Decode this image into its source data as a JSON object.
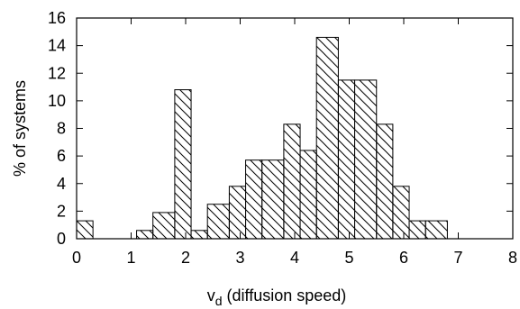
{
  "chart_data": {
    "type": "bar",
    "subtype": "histogram",
    "xlabel": {
      "prefix": "v",
      "subscript": "d",
      "suffix": " (diffusion speed)"
    },
    "ylabel": "% of systems",
    "xlim": [
      0,
      8
    ],
    "ylim": [
      0,
      16
    ],
    "xticks": [
      0,
      1,
      2,
      3,
      4,
      5,
      6,
      7,
      8
    ],
    "yticks": [
      0,
      2,
      4,
      6,
      8,
      10,
      12,
      14,
      16
    ],
    "bin_width": 0.3,
    "bins": [
      {
        "x0": 0.0,
        "x1": 0.3,
        "value": 1.3
      },
      {
        "x0": 1.1,
        "x1": 1.4,
        "value": 0.6
      },
      {
        "x0": 1.4,
        "x1": 1.8,
        "value": 1.9
      },
      {
        "x0": 1.8,
        "x1": 2.1,
        "value": 10.8
      },
      {
        "x0": 2.1,
        "x1": 2.4,
        "value": 0.6
      },
      {
        "x0": 2.4,
        "x1": 2.8,
        "value": 2.5
      },
      {
        "x0": 2.8,
        "x1": 3.1,
        "value": 3.8
      },
      {
        "x0": 3.1,
        "x1": 3.4,
        "value": 5.7
      },
      {
        "x0": 3.4,
        "x1": 3.8,
        "value": 5.7
      },
      {
        "x0": 3.8,
        "x1": 4.1,
        "value": 8.3
      },
      {
        "x0": 4.1,
        "x1": 4.4,
        "value": 6.4
      },
      {
        "x0": 4.4,
        "x1": 4.8,
        "value": 14.6
      },
      {
        "x0": 4.8,
        "x1": 5.1,
        "value": 11.5
      },
      {
        "x0": 5.1,
        "x1": 5.5,
        "value": 11.5
      },
      {
        "x0": 5.5,
        "x1": 5.8,
        "value": 8.3
      },
      {
        "x0": 5.8,
        "x1": 6.1,
        "value": 3.8
      },
      {
        "x0": 6.1,
        "x1": 6.4,
        "value": 1.3
      },
      {
        "x0": 6.4,
        "x1": 6.8,
        "value": 1.3
      }
    ],
    "grid": false,
    "fill_pattern": "diagonal-hatch",
    "colors": {
      "bar_stroke": "#000000",
      "hatch": "#000000",
      "axis": "#000000",
      "background": "#ffffff"
    }
  }
}
